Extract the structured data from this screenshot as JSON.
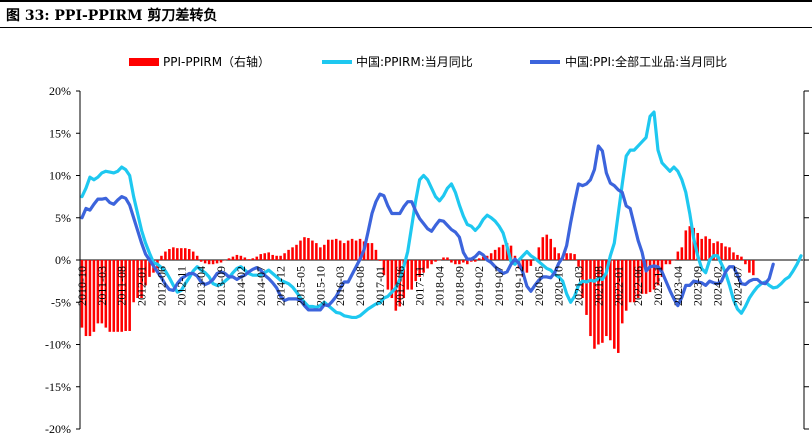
{
  "header": {
    "title": "图 33:  PPI-PPIRM 剪刀差转负"
  },
  "chart_data": {
    "type": "bar+line",
    "title": "图 33:  PPI-PPIRM 剪刀差转负",
    "ylim": [
      -20,
      20
    ],
    "yticks": [
      20,
      15,
      10,
      5,
      0,
      -5,
      -10,
      -15,
      -20
    ],
    "ytick_labels": [
      "20%",
      "15%",
      "10%",
      "5%",
      "0%",
      "-5%",
      "-10%",
      "-15%",
      "-20%"
    ],
    "xtick_labels": [
      "2010-10",
      "2011-03",
      "2011-08",
      "2012-01",
      "2012-06",
      "2012-11",
      "2013-04",
      "2013-09",
      "2014-02",
      "2014-07",
      "2014-12",
      "2015-05",
      "2015-10",
      "2016-03",
      "2016-08",
      "2017-01",
      "2017-06",
      "2017-11",
      "2018-04",
      "2018-09",
      "2019-02",
      "2019-07",
      "2019-12",
      "2020-05",
      "2020-10",
      "2021-03",
      "2021-08",
      "2022-01",
      "2022-06",
      "2022-11",
      "2023-04",
      "2023-09",
      "2024-02",
      "2024-07"
    ],
    "right_axis": "PPI-PPIRM（右轴）",
    "legend": [
      {
        "name": "PPI-PPIRM（右轴）",
        "color": "#ff0000"
      },
      {
        "name": "中国:PPIRM:当月同比",
        "color": "#1ec8f0"
      },
      {
        "name": "中国:PPI:全部工业品:当月同比",
        "color": "#3c64dc"
      }
    ],
    "series": [
      {
        "name": "中国:PPIRM:当月同比",
        "x_start": "2010-10",
        "freq": "monthly",
        "color": "#1ec8f0",
        "values": [
          7.5,
          8.5,
          9.8,
          9.5,
          9.8,
          10.3,
          10.5,
          10.4,
          10.3,
          10.5,
          11.0,
          10.7,
          10.0,
          7.5,
          5.5,
          3.5,
          2.0,
          0.8,
          -0.3,
          -0.5,
          -0.9,
          -1.3,
          -2.1,
          -3.0,
          -3.8,
          -3.6,
          -2.8,
          -2.1,
          -1.3,
          -0.8,
          -1.2,
          -1.5,
          -2.0,
          -2.8,
          -3.0,
          -2.9,
          -2.5,
          -2.1,
          -1.5,
          -1.0,
          -0.8,
          -1.2,
          -1.6,
          -1.8,
          -1.8,
          -1.8,
          -1.5,
          -1.2,
          -1.6,
          -2.0,
          -2.4,
          -2.6,
          -2.8,
          -3.2,
          -3.8,
          -4.5,
          -5.0,
          -5.5,
          -5.5,
          -5.6,
          -5.4,
          -5.0,
          -5.4,
          -5.8,
          -6.2,
          -6.3,
          -6.6,
          -6.7,
          -6.8,
          -6.8,
          -6.6,
          -6.2,
          -5.8,
          -5.5,
          -5.2,
          -5.1,
          -4.5,
          -4.3,
          -3.8,
          -3.3,
          -2.3,
          -0.8,
          1.0,
          4.0,
          7.0,
          9.5,
          10.0,
          9.5,
          8.5,
          7.5,
          7.0,
          7.6,
          8.5,
          9.0,
          8.0,
          6.5,
          5.2,
          4.2,
          4.0,
          3.5,
          4.0,
          4.8,
          5.3,
          5.0,
          4.6,
          4.0,
          3.2,
          1.6,
          -0.2,
          -0.5,
          0.0,
          0.5,
          1.0,
          0.5,
          0.2,
          -0.2,
          -0.6,
          -1.0,
          -1.2,
          -1.7,
          -2.0,
          -2.5,
          -4.0,
          -5.0,
          -4.3,
          -3.0,
          -2.5,
          -2.6,
          -2.4,
          -2.5,
          -2.2,
          -2.3,
          -1.5,
          0.5,
          2.0,
          5.5,
          9.0,
          12.3,
          13.0,
          13.0,
          13.5,
          14.0,
          14.5,
          17.0,
          17.5,
          13.0,
          11.5,
          11.0,
          10.5,
          11.0,
          10.5,
          9.5,
          8.0,
          5.5,
          2.5,
          0.5,
          -1.0,
          -1.5,
          0.0,
          0.5,
          0.5,
          -0.5,
          -1.5,
          -3.0,
          -4.7,
          -5.8,
          -6.3,
          -5.5,
          -4.5,
          -3.8,
          -3.2,
          -2.8,
          -2.6,
          -3.0,
          -3.3,
          -3.2,
          -2.8,
          -2.3,
          -2.0,
          -1.3,
          -0.5,
          0.5
        ]
      },
      {
        "name": "中国:PPI:全部工业品:当月同比",
        "x_start": "2010-10",
        "freq": "monthly",
        "color": "#3c64dc",
        "values": [
          5.0,
          6.1,
          5.9,
          6.6,
          7.2,
          7.2,
          7.3,
          6.8,
          6.6,
          7.1,
          7.5,
          7.3,
          6.5,
          5.0,
          3.5,
          2.0,
          0.7,
          0.0,
          -0.7,
          -1.4,
          -2.1,
          -2.9,
          -3.5,
          -3.6,
          -2.8,
          -2.2,
          -1.9,
          -1.6,
          -1.6,
          -1.9,
          -2.6,
          -2.9,
          -2.7,
          -2.3,
          -1.6,
          -1.4,
          -1.6,
          -2.0,
          -2.0,
          -2.3,
          -2.0,
          -1.8,
          -1.4,
          -1.1,
          -0.9,
          -1.2,
          -1.8,
          -2.2,
          -2.7,
          -3.3,
          -4.3,
          -4.8,
          -4.6,
          -4.6,
          -4.6,
          -4.8,
          -5.4,
          -5.9,
          -5.9,
          -5.9,
          -5.9,
          -5.3,
          -5.4,
          -4.9,
          -4.3,
          -3.4,
          -2.6,
          -2.6,
          -1.7,
          -0.8,
          0.1,
          1.2,
          3.3,
          5.5,
          6.9,
          7.8,
          7.6,
          6.4,
          5.5,
          5.5,
          5.5,
          6.3,
          6.9,
          6.9,
          5.8,
          4.9,
          4.3,
          3.7,
          3.4,
          4.1,
          4.7,
          4.6,
          4.1,
          3.6,
          3.3,
          2.7,
          0.9,
          0.1,
          0.1,
          0.4,
          0.9,
          0.6,
          0.0,
          -0.3,
          -0.8,
          -1.2,
          -1.6,
          -1.4,
          -0.5,
          0.1,
          -0.4,
          -1.5,
          -3.1,
          -3.7,
          -3.0,
          -2.4,
          -2.0,
          -2.0,
          -2.1,
          -1.5,
          -0.4,
          0.3,
          1.7,
          4.4,
          6.8,
          9.0,
          8.8,
          9.0,
          9.5,
          10.7,
          13.5,
          12.9,
          10.3,
          9.1,
          8.8,
          8.3,
          8.0,
          6.4,
          6.1,
          4.2,
          2.3,
          0.9,
          -1.3,
          -0.8,
          -0.7,
          -0.8,
          -1.4,
          -2.5,
          -3.6,
          -4.6,
          -5.4,
          -4.4,
          -3.0,
          -3.0,
          -2.5,
          -2.6,
          -2.7,
          -3.0,
          -2.5,
          -2.7,
          -2.8,
          -2.5,
          -1.4,
          -0.8,
          -0.8,
          -1.8,
          -2.8,
          -2.9,
          -2.5,
          -2.3,
          -2.3,
          -2.7,
          -2.8,
          -2.2,
          -0.5
        ]
      },
      {
        "name": "PPI-PPIRM（右轴）",
        "x_start": "2010-10",
        "freq": "monthly",
        "color": "#ff0000",
        "type": "bar",
        "values": [
          -8.0,
          -9.0,
          -9.0,
          -8.5,
          -7.5,
          -7.5,
          -8.0,
          -8.5,
          -8.5,
          -8.5,
          -8.5,
          -8.4,
          -8.4,
          -5.0,
          -4.5,
          -4.5,
          -3.0,
          -2.0,
          -1.5,
          -1.0,
          0.5,
          1.0,
          1.3,
          1.5,
          1.4,
          1.4,
          1.4,
          1.3,
          1.0,
          0.5,
          -0.2,
          -0.4,
          -0.5,
          -0.5,
          -0.4,
          -0.3,
          0.0,
          0.2,
          0.4,
          0.6,
          0.5,
          0.3,
          0.1,
          0.2,
          0.4,
          0.7,
          0.8,
          0.9,
          0.6,
          0.5,
          0.5,
          0.8,
          1.2,
          1.5,
          1.8,
          2.3,
          2.7,
          2.6,
          2.3,
          2.0,
          1.5,
          1.8,
          2.4,
          2.4,
          2.5,
          2.3,
          2.0,
          2.3,
          2.5,
          2.3,
          2.5,
          2.2,
          2.0,
          2.0,
          1.2,
          -0.1,
          -1.8,
          -3.5,
          -4.5,
          -6.0,
          -5.5,
          -4.5,
          -3.5,
          -3.5,
          -2.5,
          -2.0,
          -1.5,
          -1.0,
          -0.5,
          -0.2,
          0.0,
          0.3,
          0.3,
          -0.3,
          -0.5,
          -0.5,
          -0.3,
          -0.5,
          -0.2,
          -0.2,
          0.2,
          0.4,
          0.5,
          0.8,
          1.2,
          1.5,
          1.8,
          2.0,
          1.7,
          0.5,
          -1.0,
          -2.0,
          -1.5,
          -0.7,
          0.3,
          1.5,
          2.7,
          3.0,
          2.5,
          1.5,
          0.8,
          0.5,
          0.8,
          0.8,
          0.7,
          -0.8,
          -4.5,
          -6.5,
          -9.0,
          -10.5,
          -10.0,
          -9.8,
          -9.0,
          -9.5,
          -10.5,
          -11.0,
          -7.5,
          -6.0,
          -5.0,
          -5.0,
          -4.5,
          -4.0,
          -4.0,
          -3.8,
          -3.5,
          -3.0,
          -2.0,
          -0.5,
          -0.5,
          0.0,
          1.0,
          1.5,
          3.5,
          4.0,
          3.8,
          3.2,
          2.5,
          2.8,
          2.5,
          2.0,
          2.2,
          2.0,
          1.6,
          1.5,
          0.9,
          0.6,
          0.4,
          -0.5,
          -1.5,
          -1.8
        ]
      }
    ]
  }
}
